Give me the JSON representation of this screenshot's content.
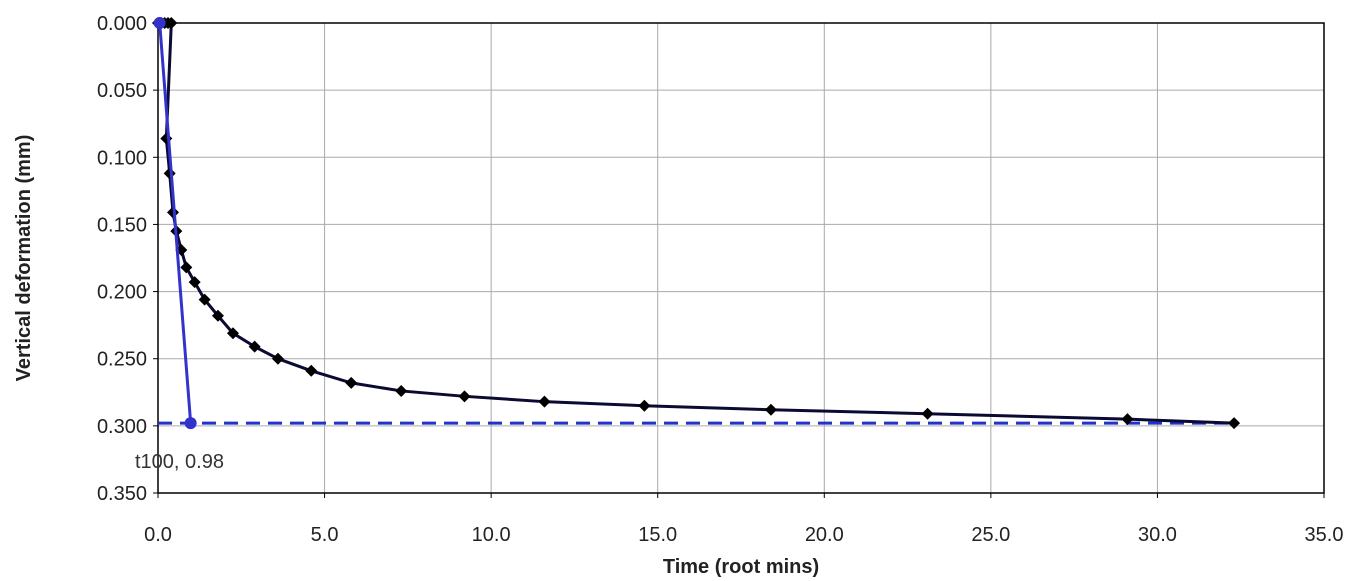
{
  "chart_data": {
    "type": "line",
    "xlabel": "Time (root mins)",
    "ylabel": "Vertical deformation (mm)",
    "xlim": [
      0,
      35
    ],
    "ylim": [
      0,
      0.35
    ],
    "y_inverted": true,
    "grid": true,
    "x_ticks": [
      "0.0",
      "5.0",
      "10.0",
      "15.0",
      "20.0",
      "25.0",
      "30.0",
      "35.0"
    ],
    "y_ticks": [
      "0.000",
      "0.050",
      "0.100",
      "0.150",
      "0.200",
      "0.250",
      "0.300",
      "0.350"
    ],
    "series": [
      {
        "color": "#000000",
        "marker": "diamond",
        "points": [
          [
            0.0,
            0.0
          ],
          [
            0.1,
            0.0
          ],
          [
            0.2,
            0.0
          ],
          [
            0.3,
            0.0
          ],
          [
            0.4,
            0.0
          ],
          [
            0.25,
            0.086
          ],
          [
            0.35,
            0.112
          ],
          [
            0.45,
            0.141
          ],
          [
            0.55,
            0.155
          ],
          [
            0.7,
            0.169
          ],
          [
            0.85,
            0.182
          ],
          [
            1.1,
            0.193
          ],
          [
            1.4,
            0.206
          ],
          [
            1.8,
            0.218
          ],
          [
            2.25,
            0.231
          ],
          [
            2.9,
            0.241
          ],
          [
            3.6,
            0.25
          ],
          [
            4.6,
            0.259
          ],
          [
            5.8,
            0.268
          ],
          [
            7.3,
            0.274
          ],
          [
            9.2,
            0.278
          ],
          [
            11.6,
            0.282
          ],
          [
            14.6,
            0.285
          ],
          [
            18.4,
            0.288
          ],
          [
            23.1,
            0.291
          ],
          [
            29.1,
            0.295
          ],
          [
            32.3,
            0.298
          ]
        ]
      },
      {
        "color": "#3333cc",
        "marker": "circle",
        "points": [
          [
            0.05,
            0.0
          ],
          [
            0.98,
            0.298
          ]
        ]
      }
    ],
    "reference_line": {
      "y": 0.298,
      "color": "#2233cc",
      "style": "dashed"
    },
    "annotation": {
      "text": "t100, 0.98",
      "x": 0.98,
      "y": 0.298
    }
  }
}
